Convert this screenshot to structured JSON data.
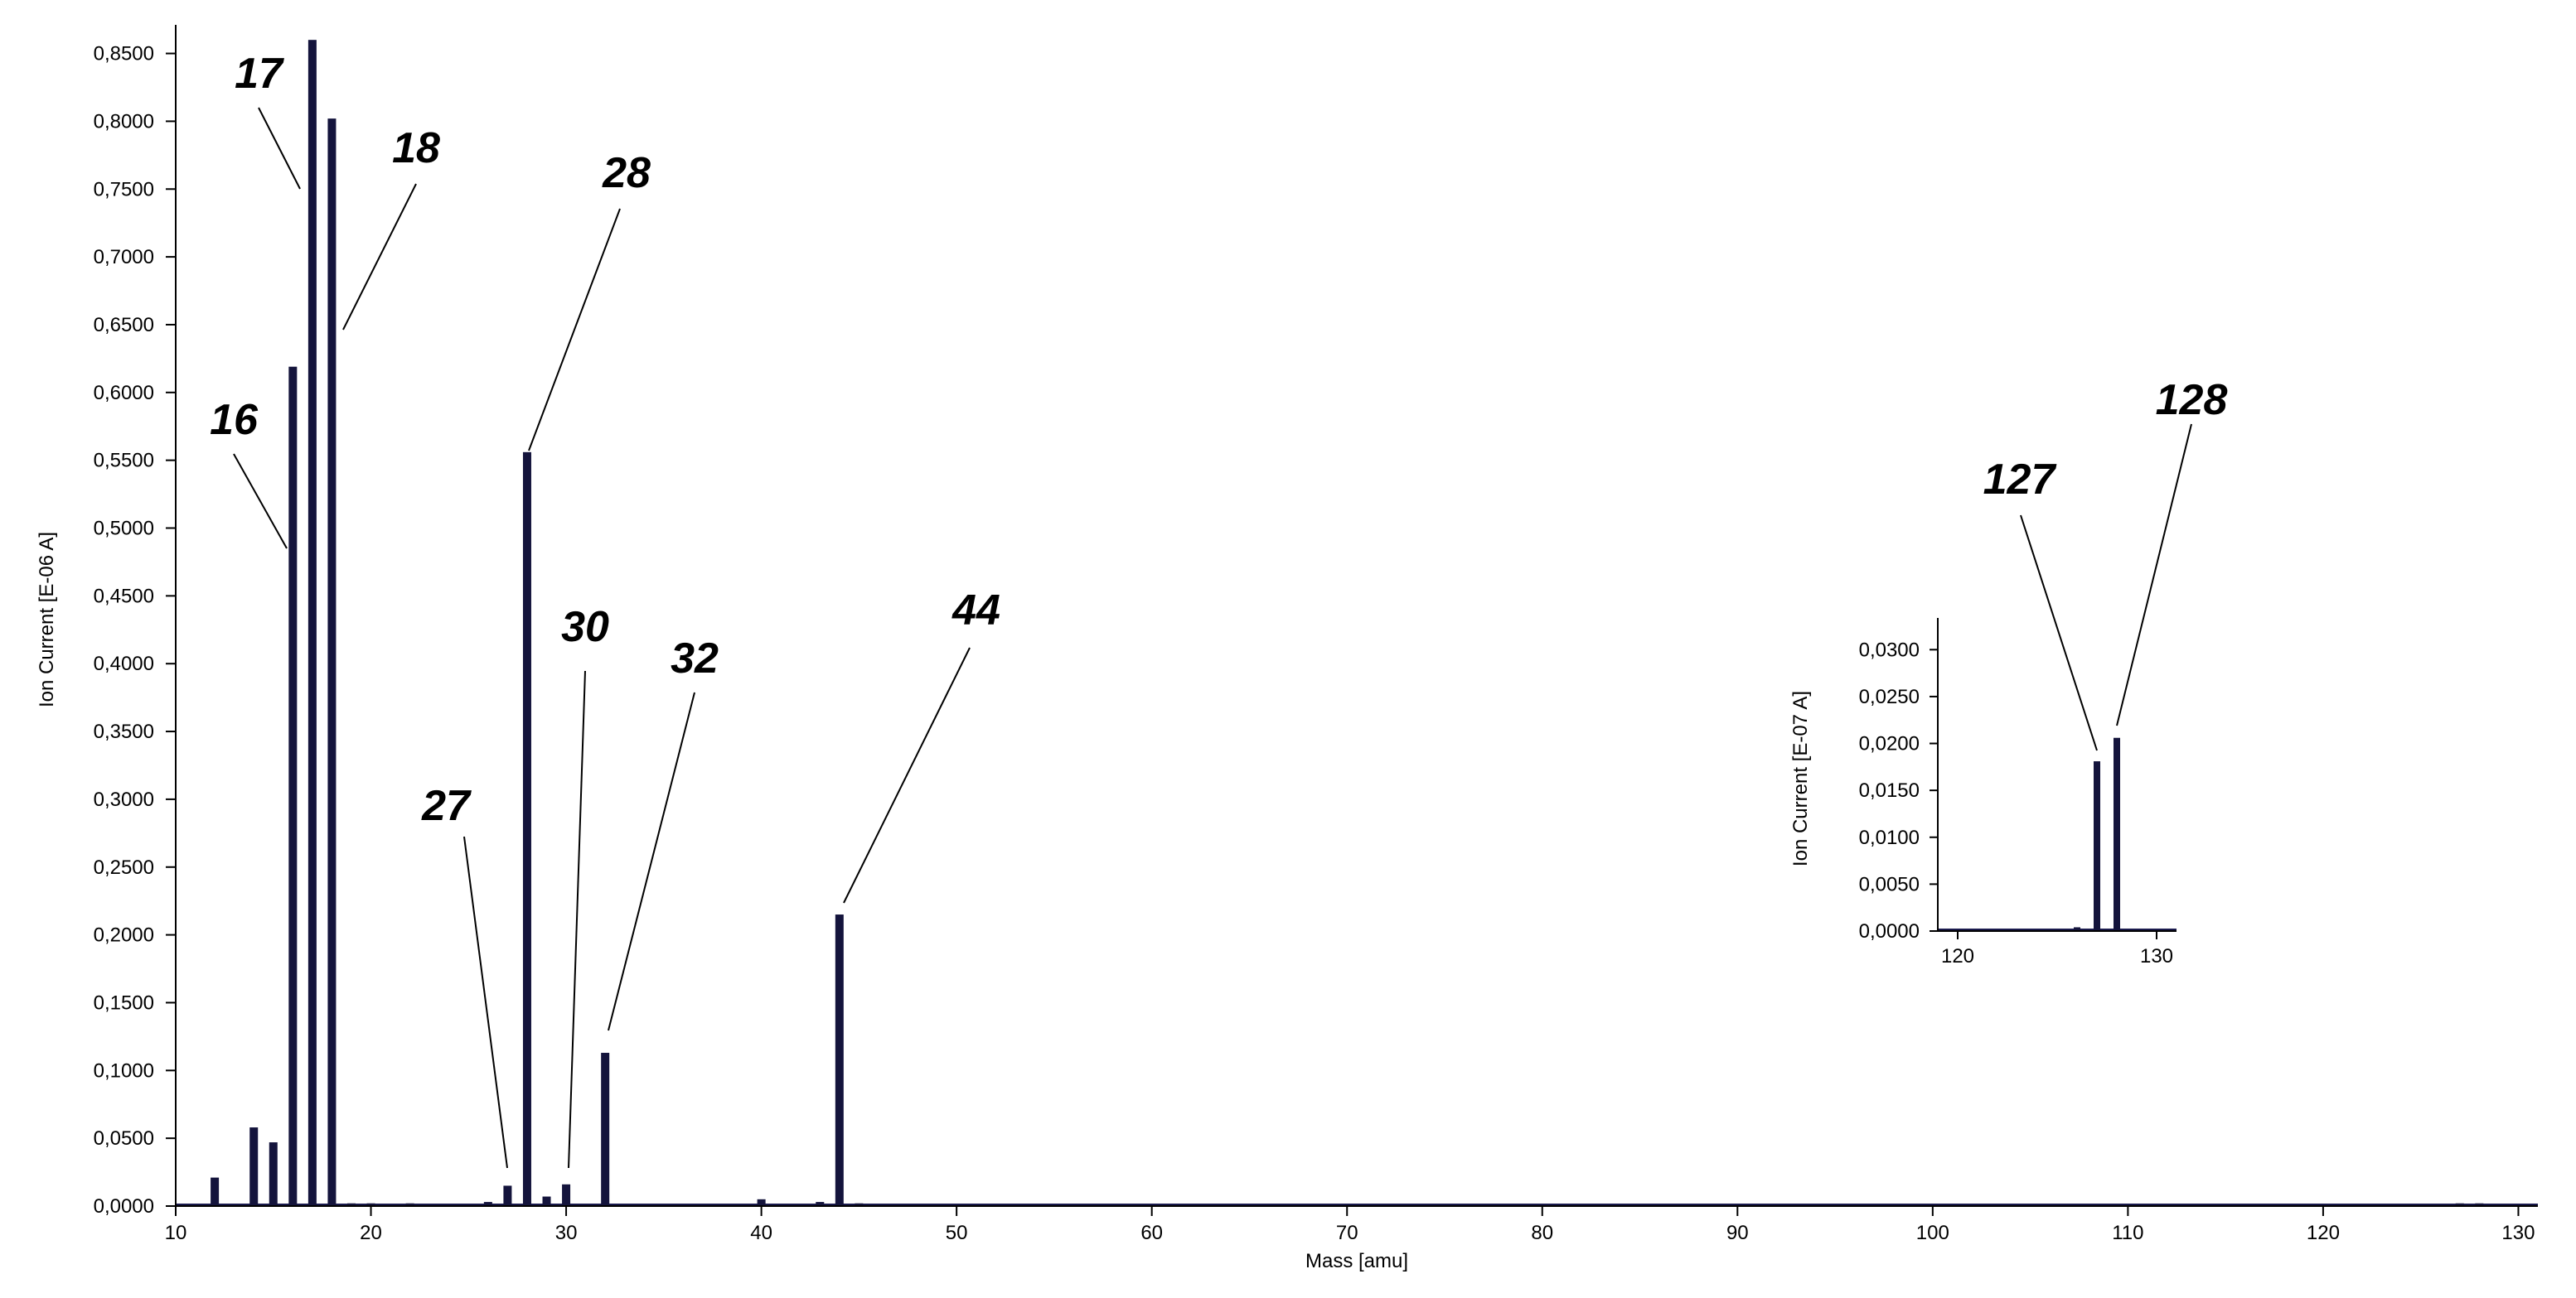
{
  "chart_data": [
    {
      "type": "bar",
      "xlabel": "Mass [amu]",
      "ylabel": "Ion Current [E-06 A]",
      "xlim": [
        10,
        131
      ],
      "ylim": [
        0,
        0.865
      ],
      "xticks": [
        10,
        20,
        30,
        40,
        50,
        60,
        70,
        80,
        90,
        100,
        110,
        120,
        130
      ],
      "xtick_labels": [
        "10",
        "20",
        "30",
        "40",
        "50",
        "60",
        "70",
        "80",
        "90",
        "100",
        "110",
        "120",
        "130"
      ],
      "yticks": [
        0,
        0.05,
        0.1,
        0.15,
        0.2,
        0.25,
        0.3,
        0.35,
        0.4,
        0.45,
        0.5,
        0.55,
        0.6,
        0.65,
        0.7,
        0.75,
        0.8,
        0.85
      ],
      "ytick_labels": [
        "0,0000",
        "0,0500",
        "0,1000",
        "0,1500",
        "0,2000",
        "0,2500",
        "0,3000",
        "0,3500",
        "0,4000",
        "0,4500",
        "0,5000",
        "0,5500",
        "0,6000",
        "0,6500",
        "0,7000",
        "0,7500",
        "0,8000",
        "0,8500"
      ],
      "grid": false,
      "series": [
        {
          "x": [
            12,
            14,
            15,
            16,
            17,
            18,
            19,
            20,
            22,
            26,
            27,
            28,
            29,
            30,
            32,
            40,
            43,
            44,
            45,
            127,
            128
          ],
          "values": [
            0.021,
            0.058,
            0.047,
            0.619,
            0.86,
            0.802,
            0.002,
            0.002,
            0.002,
            0.003,
            0.015,
            0.556,
            0.007,
            0.016,
            0.113,
            0.005,
            0.003,
            0.215,
            0.002,
            0.002,
            0.002
          ]
        }
      ],
      "annotations": [
        {
          "text": "16",
          "x": 16
        },
        {
          "text": "17",
          "x": 17
        },
        {
          "text": "18",
          "x": 18
        },
        {
          "text": "27",
          "x": 27
        },
        {
          "text": "28",
          "x": 28
        },
        {
          "text": "30",
          "x": 30
        },
        {
          "text": "32",
          "x": 32
        },
        {
          "text": "44",
          "x": 44
        }
      ]
    },
    {
      "type": "bar",
      "xlabel": "",
      "ylabel": "Ion Current [E-07 A]",
      "xlim": [
        119,
        131
      ],
      "ylim": [
        0,
        0.0325
      ],
      "xticks": [
        120,
        130
      ],
      "xtick_labels": [
        "120",
        "130"
      ],
      "yticks": [
        0,
        0.005,
        0.01,
        0.015,
        0.02,
        0.025,
        0.03
      ],
      "ytick_labels": [
        "0,0000",
        "0,0050",
        "0,0100",
        "0,0150",
        "0,0200",
        "0,0250",
        "0,0300"
      ],
      "grid": false,
      "series": [
        {
          "x": [
            126,
            127,
            128
          ],
          "values": [
            0.0004,
            0.0181,
            0.0206
          ]
        }
      ],
      "annotations": [
        {
          "text": "127",
          "x": 127
        },
        {
          "text": "128",
          "x": 128
        }
      ]
    }
  ]
}
